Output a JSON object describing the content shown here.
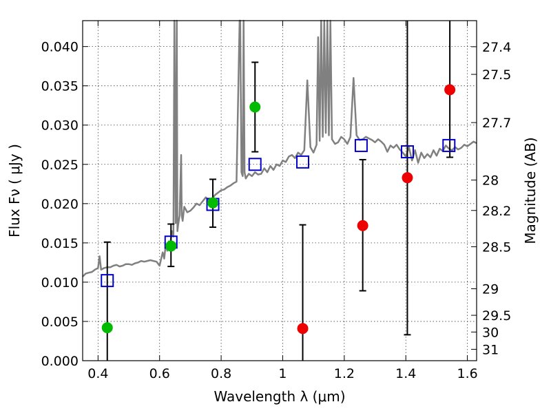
{
  "chart_data": {
    "type": "scatter",
    "title": "",
    "xlabel": "Wavelength  λ (μm)",
    "ylabel": "Flux  Fν  ( μJy )",
    "y2label": "Magnitude (AB)",
    "xlim": [
      0.35,
      1.63
    ],
    "ylim": [
      0.0,
      0.0433
    ],
    "xticks": [
      0.4,
      0.6,
      0.8,
      1.0,
      1.2,
      1.4,
      1.6
    ],
    "xtick_labels": [
      "0.4",
      "0.6",
      "0.8",
      "1",
      "1.2",
      "1.4",
      "1.6"
    ],
    "yticks": [
      0.0,
      0.005,
      0.01,
      0.015,
      0.02,
      0.025,
      0.03,
      0.035,
      0.04
    ],
    "ytick_labels": [
      "0.000",
      "0.005",
      "0.010",
      "0.015",
      "0.020",
      "0.025",
      "0.030",
      "0.035",
      "0.040"
    ],
    "y2ticks": [
      {
        "label": "27.4",
        "flux": 0.03998
      },
      {
        "label": "27.5",
        "flux": 0.03646
      },
      {
        "label": "27.7",
        "flux": 0.03032
      },
      {
        "label": "28",
        "flux": 0.023
      },
      {
        "label": "28.2",
        "flux": 0.01913
      },
      {
        "label": "28.5",
        "flux": 0.01451
      },
      {
        "label": "29",
        "flux": 0.00916
      },
      {
        "label": "29.5",
        "flux": 0.00578
      },
      {
        "label": "30",
        "flux": 0.00365
      },
      {
        "label": "31",
        "flux": 0.00145
      }
    ],
    "grid": true,
    "series": [
      {
        "color": "#808080",
        "style": "line",
        "x": [
          0.35,
          0.36,
          0.37,
          0.38,
          0.39,
          0.4,
          0.405,
          0.41,
          0.42,
          0.43,
          0.44,
          0.45,
          0.46,
          0.47,
          0.48,
          0.49,
          0.5,
          0.51,
          0.52,
          0.53,
          0.54,
          0.55,
          0.56,
          0.57,
          0.58,
          0.59,
          0.6,
          0.61,
          0.615,
          0.62,
          0.625,
          0.63,
          0.635,
          0.64,
          0.645,
          0.648,
          0.652,
          0.656,
          0.658,
          0.66,
          0.665,
          0.67,
          0.672,
          0.675,
          0.68,
          0.69,
          0.7,
          0.71,
          0.72,
          0.73,
          0.74,
          0.75,
          0.76,
          0.77,
          0.78,
          0.79,
          0.8,
          0.81,
          0.82,
          0.83,
          0.84,
          0.85,
          0.86,
          0.862,
          0.866,
          0.87,
          0.873,
          0.876,
          0.88,
          0.89,
          0.9,
          0.91,
          0.92,
          0.93,
          0.94,
          0.95,
          0.96,
          0.97,
          0.98,
          0.99,
          1.0,
          1.01,
          1.02,
          1.03,
          1.04,
          1.05,
          1.06,
          1.07,
          1.08,
          1.09,
          1.1,
          1.11,
          1.115,
          1.12,
          1.125,
          1.13,
          1.135,
          1.14,
          1.145,
          1.15,
          1.155,
          1.16,
          1.17,
          1.18,
          1.19,
          1.2,
          1.21,
          1.22,
          1.23,
          1.24,
          1.25,
          1.26,
          1.27,
          1.28,
          1.29,
          1.3,
          1.31,
          1.32,
          1.33,
          1.34,
          1.35,
          1.36,
          1.37,
          1.38,
          1.39,
          1.4,
          1.41,
          1.42,
          1.43,
          1.44,
          1.45,
          1.46,
          1.47,
          1.48,
          1.49,
          1.5,
          1.51,
          1.52,
          1.53,
          1.54,
          1.55,
          1.56,
          1.57,
          1.58,
          1.59,
          1.6,
          1.61,
          1.62,
          1.63
        ],
        "y": [
          0.0107,
          0.0111,
          0.0112,
          0.0113,
          0.0116,
          0.0118,
          0.0133,
          0.0116,
          0.0118,
          0.0119,
          0.0119,
          0.0121,
          0.0122,
          0.012,
          0.0121,
          0.0123,
          0.0123,
          0.0122,
          0.0124,
          0.0125,
          0.0127,
          0.0126,
          0.0127,
          0.0128,
          0.0127,
          0.0126,
          0.0121,
          0.0138,
          0.013,
          0.0148,
          0.014,
          0.0152,
          0.015,
          0.0165,
          0.0158,
          0.0433,
          0.0175,
          0.0433,
          0.0165,
          0.0172,
          0.0185,
          0.0262,
          0.0185,
          0.0178,
          0.0196,
          0.0189,
          0.0191,
          0.0195,
          0.02,
          0.0198,
          0.0203,
          0.0208,
          0.0204,
          0.0206,
          0.0211,
          0.0214,
          0.0217,
          0.0218,
          0.0221,
          0.0223,
          0.0226,
          0.0228,
          0.0433,
          0.0433,
          0.024,
          0.0235,
          0.0433,
          0.024,
          0.0232,
          0.0238,
          0.0235,
          0.024,
          0.0237,
          0.0238,
          0.0245,
          0.024,
          0.0248,
          0.0243,
          0.025,
          0.0248,
          0.0255,
          0.0253,
          0.026,
          0.0262,
          0.0258,
          0.0265,
          0.0262,
          0.0268,
          0.0357,
          0.0272,
          0.0265,
          0.0275,
          0.0412,
          0.028,
          0.0433,
          0.0285,
          0.0433,
          0.029,
          0.0433,
          0.0287,
          0.0433,
          0.0282,
          0.0276,
          0.0278,
          0.0285,
          0.0282,
          0.0276,
          0.0285,
          0.036,
          0.0287,
          0.0281,
          0.0282,
          0.0285,
          0.0283,
          0.0281,
          0.0278,
          0.0282,
          0.0279,
          0.0275,
          0.0266,
          0.0274,
          0.0271,
          0.0275,
          0.0269,
          0.0265,
          0.026,
          0.0272,
          0.0255,
          0.0268,
          0.0252,
          0.0265,
          0.0258,
          0.0263,
          0.0259,
          0.0268,
          0.0261,
          0.027,
          0.0267,
          0.0274,
          0.027,
          0.0268,
          0.0272,
          0.0269,
          0.0271,
          0.0275,
          0.0273,
          0.0276,
          0.0279,
          0.0277
        ]
      },
      {
        "color": "#0000cc",
        "style": "open-square",
        "x": [
          0.43,
          0.637,
          0.773,
          0.91,
          1.065,
          1.255,
          1.405,
          1.54
        ],
        "y": [
          0.0102,
          0.0151,
          0.0199,
          0.025,
          0.0253,
          0.0274,
          0.0266,
          0.0274
        ]
      },
      {
        "color": "#00bb00",
        "style": "filled-circle",
        "x": [
          0.43,
          0.637,
          0.773,
          0.91
        ],
        "y": [
          0.0042,
          0.0146,
          0.0201,
          0.0323
        ],
        "yerr_low": [
          0.0,
          0.012,
          0.017,
          0.0266
        ],
        "yerr_high": [
          0.0151,
          0.0174,
          0.0231,
          0.038
        ]
      },
      {
        "color": "#ee0000",
        "style": "filled-circle",
        "x": [
          1.065,
          1.26,
          1.405,
          1.543
        ],
        "y": [
          0.0041,
          0.0172,
          0.0233,
          0.0345
        ],
        "yerr_low": [
          0.0,
          0.0089,
          0.0033,
          0.0259
        ],
        "yerr_high": [
          0.0173,
          0.0256,
          0.0433,
          0.0433
        ]
      }
    ]
  }
}
